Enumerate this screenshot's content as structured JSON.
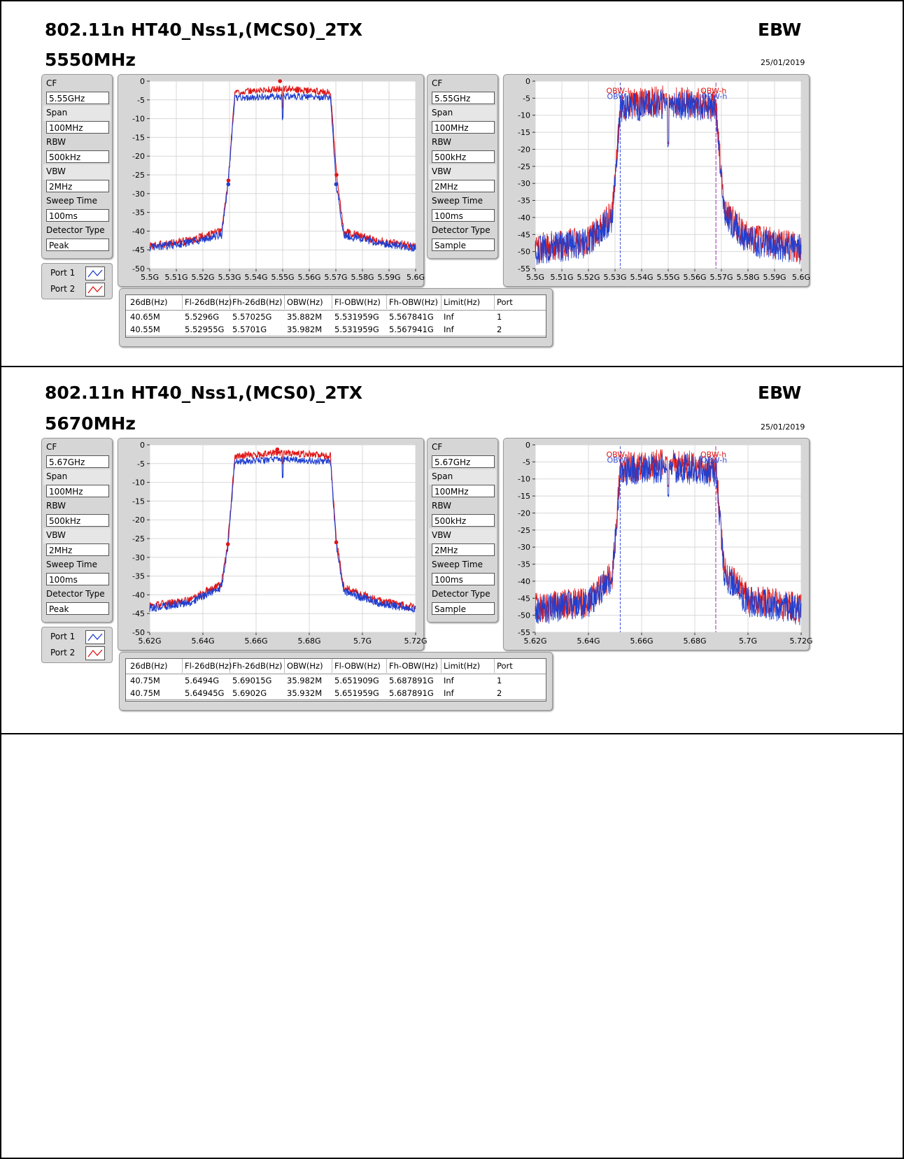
{
  "sections": [
    {
      "title": "802.11n HT40_Nss1,(MCS0)_2TX",
      "frequency": "5550MHz",
      "ebw_label": "EBW",
      "date": "25/01/2019",
      "params_left": {
        "cf_label": "CF",
        "cf_value": "5.55GHz",
        "span_label": "Span",
        "span_value": "100MHz",
        "rbw_label": "RBW",
        "rbw_value": "500kHz",
        "vbw_label": "VBW",
        "vbw_value": "2MHz",
        "sweep_label": "Sweep Time",
        "sweep_value": "100ms",
        "detector_label": "Detector Type",
        "detector_value": "Peak"
      },
      "params_right": {
        "cf_label": "CF",
        "cf_value": "5.55GHz",
        "span_label": "Span",
        "span_value": "100MHz",
        "rbw_label": "RBW",
        "rbw_value": "500kHz",
        "vbw_label": "VBW",
        "vbw_value": "2MHz",
        "sweep_label": "Sweep Time",
        "sweep_value": "100ms",
        "detector_label": "Detector Type",
        "detector_value": "Sample"
      },
      "legend": [
        {
          "name": "Port 1",
          "color": "#1f3fd0"
        },
        {
          "name": "Port 2",
          "color": "#e01515"
        }
      ],
      "table": {
        "headers": [
          "26dB(Hz)",
          "Fl-26dB(Hz)",
          "Fh-26dB(Hz)",
          "OBW(Hz)",
          "Fl-OBW(Hz)",
          "Fh-OBW(Hz)",
          "Limit(Hz)",
          "Port"
        ],
        "rows": [
          [
            "40.65M",
            "5.5296G",
            "5.57025G",
            "35.882M",
            "5.531959G",
            "5.567841G",
            "Inf",
            "1"
          ],
          [
            "40.55M",
            "5.52955G",
            "5.5701G",
            "35.982M",
            "5.531959G",
            "5.567941G",
            "Inf",
            "2"
          ]
        ]
      }
    },
    {
      "title": "802.11n HT40_Nss1,(MCS0)_2TX",
      "frequency": "5670MHz",
      "ebw_label": "EBW",
      "date": "25/01/2019",
      "params_left": {
        "cf_label": "CF",
        "cf_value": "5.67GHz",
        "span_label": "Span",
        "span_value": "100MHz",
        "rbw_label": "RBW",
        "rbw_value": "500kHz",
        "vbw_label": "VBW",
        "vbw_value": "2MHz",
        "sweep_label": "Sweep Time",
        "sweep_value": "100ms",
        "detector_label": "Detector Type",
        "detector_value": "Peak"
      },
      "params_right": {
        "cf_label": "CF",
        "cf_value": "5.67GHz",
        "span_label": "Span",
        "span_value": "100MHz",
        "rbw_label": "RBW",
        "rbw_value": "500kHz",
        "vbw_label": "VBW",
        "vbw_value": "2MHz",
        "sweep_label": "Sweep Time",
        "sweep_value": "100ms",
        "detector_label": "Detector Type",
        "detector_value": "Sample"
      },
      "legend": [
        {
          "name": "Port 1",
          "color": "#1f3fd0"
        },
        {
          "name": "Port 2",
          "color": "#e01515"
        }
      ],
      "table": {
        "headers": [
          "26dB(Hz)",
          "Fl-26dB(Hz)",
          "Fh-26dB(Hz)",
          "OBW(Hz)",
          "Fl-OBW(Hz)",
          "Fh-OBW(Hz)",
          "Limit(Hz)",
          "Port"
        ],
        "rows": [
          [
            "40.75M",
            "5.6494G",
            "5.69015G",
            "35.982M",
            "5.651909G",
            "5.687891G",
            "Inf",
            "1"
          ],
          [
            "40.75M",
            "5.64945G",
            "5.6902G",
            "35.932M",
            "5.651959G",
            "5.687891G",
            "Inf",
            "2"
          ]
        ]
      }
    }
  ],
  "chart_data": [
    {
      "type": "line",
      "variant": "peak-spectrum",
      "x_unit": "GHz",
      "xlim": [
        5.5,
        5.6
      ],
      "ylim": [
        -50,
        0
      ],
      "x_ticks": [
        "5.5G",
        "5.51G",
        "5.52G",
        "5.53G",
        "5.54G",
        "5.55G",
        "5.56G",
        "5.57G",
        "5.58G",
        "5.59G",
        "5.6G"
      ],
      "x_tick_values": [
        5.5,
        5.51,
        5.52,
        5.53,
        5.54,
        5.55,
        5.56,
        5.57,
        5.58,
        5.59,
        5.6
      ],
      "y_ticks": [
        0,
        -5,
        -10,
        -15,
        -20,
        -25,
        -30,
        -35,
        -40,
        -45,
        -50
      ],
      "grid": true,
      "series": [
        {
          "color": "#e01515",
          "x": [
            5.5,
            5.515,
            5.527,
            5.5296,
            5.532,
            5.55,
            5.568,
            5.57025,
            5.573,
            5.585,
            5.6
          ],
          "y": [
            -44,
            -42.5,
            -40,
            -26,
            -3,
            -2,
            -3,
            -25,
            -40,
            -42.5,
            -44
          ],
          "band_level": -2.5,
          "notch": {
            "x": 5.55,
            "y": -7
          }
        },
        {
          "color": "#1f3fd0",
          "x": [
            5.5,
            5.515,
            5.527,
            5.52955,
            5.532,
            5.55,
            5.568,
            5.5701,
            5.573,
            5.585,
            5.6
          ],
          "y": [
            -44.5,
            -43,
            -41,
            -27,
            -4.5,
            -4,
            -4.5,
            -27.5,
            -41,
            -43,
            -44.5
          ],
          "band_level": -4.3,
          "notch": {
            "x": 5.55,
            "y": -10
          }
        }
      ],
      "markers": [
        {
          "x": 5.5296,
          "y": -26.5,
          "color": "#e01515"
        },
        {
          "x": 5.57025,
          "y": -25,
          "color": "#e01515"
        },
        {
          "x": 5.549,
          "y": 0,
          "color": "#e01515"
        },
        {
          "x": 5.52955,
          "y": -27.5,
          "color": "#1f3fd0"
        },
        {
          "x": 5.5701,
          "y": -27.5,
          "color": "#1f3fd0"
        }
      ]
    },
    {
      "type": "line",
      "variant": "sample-spectrum",
      "x_unit": "GHz",
      "xlim": [
        5.5,
        5.6
      ],
      "ylim": [
        -55,
        0
      ],
      "x_ticks": [
        "5.5G",
        "5.51G",
        "5.52G",
        "5.53G",
        "5.54G",
        "5.55G",
        "5.56G",
        "5.57G",
        "5.58G",
        "5.59G",
        "5.6G"
      ],
      "x_tick_values": [
        5.5,
        5.51,
        5.52,
        5.53,
        5.54,
        5.55,
        5.56,
        5.57,
        5.58,
        5.59,
        5.6
      ],
      "y_ticks": [
        0,
        -5,
        -10,
        -15,
        -20,
        -25,
        -30,
        -35,
        -40,
        -45,
        -50,
        -55
      ],
      "grid": true,
      "obw_lines": [
        {
          "x": 5.531959,
          "color": "#3a4fd8",
          "label": "OBW-l"
        },
        {
          "x": 5.567941,
          "color": "#9b2fb0",
          "label": "OBW-h"
        }
      ],
      "series": [
        {
          "color": "#e01515",
          "x": [
            5.5,
            5.52,
            5.529,
            5.532,
            5.55,
            5.568,
            5.571,
            5.58,
            5.6
          ],
          "y": [
            -49,
            -47,
            -39,
            -7,
            -5.5,
            -7,
            -38,
            -46,
            -49
          ],
          "band_level": -5.5,
          "notch": {
            "x": 5.55,
            "y": -18
          }
        },
        {
          "color": "#1f3fd0",
          "x": [
            5.5,
            5.52,
            5.529,
            5.532,
            5.55,
            5.568,
            5.571,
            5.58,
            5.6
          ],
          "y": [
            -49.5,
            -47.5,
            -40,
            -8,
            -6.5,
            -8,
            -39,
            -47,
            -49.5
          ],
          "band_level": -6.5,
          "notch": {
            "x": 5.55,
            "y": -19
          }
        }
      ]
    },
    {
      "type": "line",
      "variant": "peak-spectrum",
      "x_unit": "GHz",
      "xlim": [
        5.62,
        5.72
      ],
      "ylim": [
        -50,
        0
      ],
      "x_ticks": [
        "5.62G",
        "5.64G",
        "5.66G",
        "5.68G",
        "5.7G",
        "5.72G"
      ],
      "x_tick_values": [
        5.62,
        5.64,
        5.66,
        5.68,
        5.7,
        5.72
      ],
      "y_ticks": [
        0,
        -5,
        -10,
        -15,
        -20,
        -25,
        -30,
        -35,
        -40,
        -45,
        -50
      ],
      "grid": true,
      "series": [
        {
          "color": "#e01515",
          "x": [
            5.62,
            5.635,
            5.647,
            5.6494,
            5.652,
            5.67,
            5.688,
            5.69015,
            5.693,
            5.705,
            5.72
          ],
          "y": [
            -43,
            -41.5,
            -37,
            -26,
            -3,
            -2,
            -3,
            -25.5,
            -38,
            -41.5,
            -43.5
          ],
          "band_level": -2.5,
          "notch": {
            "x": 5.67,
            "y": -5
          }
        },
        {
          "color": "#1f3fd0",
          "x": [
            5.62,
            5.635,
            5.647,
            5.64945,
            5.652,
            5.67,
            5.688,
            5.6902,
            5.693,
            5.705,
            5.72
          ],
          "y": [
            -43.5,
            -42,
            -38,
            -27,
            -4.5,
            -3.8,
            -4.5,
            -27,
            -39,
            -42,
            -44
          ],
          "band_level": -4.0,
          "notch": {
            "x": 5.67,
            "y": -8.5
          }
        }
      ],
      "markers": [
        {
          "x": 5.6494,
          "y": -26.5,
          "color": "#e01515"
        },
        {
          "x": 5.69015,
          "y": -26,
          "color": "#e01515"
        },
        {
          "x": 5.668,
          "y": -1.2,
          "color": "#e01515"
        }
      ]
    },
    {
      "type": "line",
      "variant": "sample-spectrum",
      "x_unit": "GHz",
      "xlim": [
        5.62,
        5.72
      ],
      "ylim": [
        -55,
        0
      ],
      "x_ticks": [
        "5.62G",
        "5.64G",
        "5.66G",
        "5.68G",
        "5.7G",
        "5.72G"
      ],
      "x_tick_values": [
        5.62,
        5.64,
        5.66,
        5.68,
        5.7,
        5.72
      ],
      "y_ticks": [
        0,
        -5,
        -10,
        -15,
        -20,
        -25,
        -30,
        -35,
        -40,
        -45,
        -50,
        -55
      ],
      "grid": true,
      "obw_lines": [
        {
          "x": 5.651959,
          "color": "#3a4fd8",
          "label": "OBW-l"
        },
        {
          "x": 5.687891,
          "color": "#9b2fb0",
          "label": "OBW-h"
        }
      ],
      "series": [
        {
          "color": "#e01515",
          "x": [
            5.62,
            5.64,
            5.649,
            5.652,
            5.67,
            5.688,
            5.691,
            5.7,
            5.72
          ],
          "y": [
            -48,
            -46,
            -38,
            -7,
            -5.5,
            -7,
            -37,
            -45,
            -48
          ],
          "band_level": -5.5,
          "notch": {
            "x": 5.67,
            "y": -12
          }
        },
        {
          "color": "#1f3fd0",
          "x": [
            5.62,
            5.64,
            5.649,
            5.652,
            5.67,
            5.688,
            5.691,
            5.7,
            5.72
          ],
          "y": [
            -48.5,
            -46.5,
            -39,
            -8,
            -6.5,
            -8,
            -38,
            -46,
            -48.5
          ],
          "band_level": -6.5,
          "notch": {
            "x": 5.67,
            "y": -15
          }
        }
      ]
    }
  ]
}
